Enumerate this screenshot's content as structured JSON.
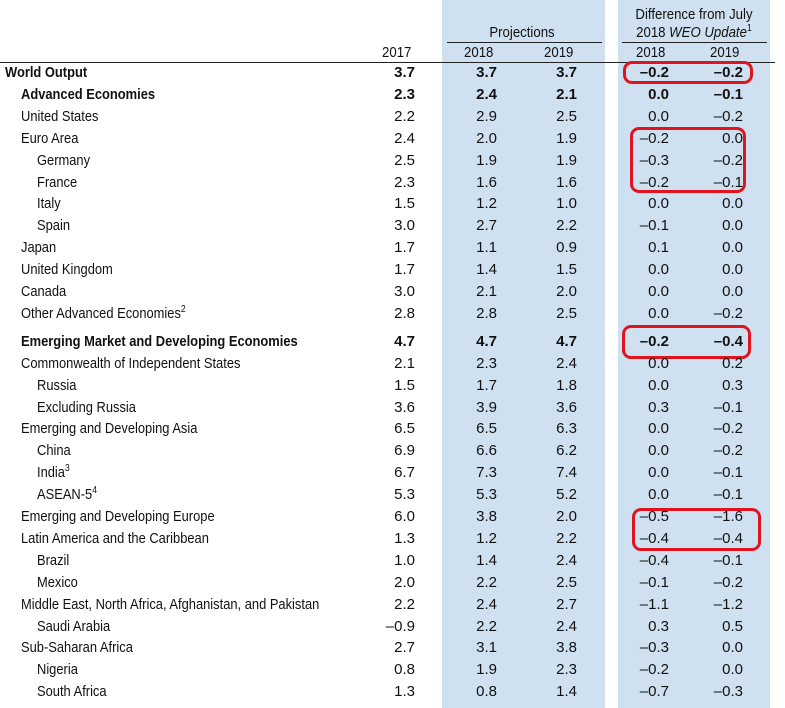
{
  "header": {
    "projections": "Projections",
    "difference": "Difference from July",
    "update_year": "2018",
    "update_title": "WEO Update",
    "update_note": "1",
    "years": [
      "2017",
      "2018",
      "2019",
      "2018",
      "2019"
    ]
  },
  "table": {
    "rows": [
      {
        "label": "World Output",
        "level": 0,
        "bold": true,
        "values": [
          "3.7",
          "3.7",
          "3.7",
          "–0.2",
          "–0.2"
        ]
      },
      {
        "label": "Advanced Economies",
        "level": 1,
        "bold": true,
        "values": [
          "2.3",
          "2.4",
          "2.1",
          "0.0",
          "–0.1"
        ]
      },
      {
        "label": "United States",
        "level": 1,
        "values": [
          "2.2",
          "2.9",
          "2.5",
          "0.0",
          "–0.2"
        ]
      },
      {
        "label": "Euro Area",
        "level": 1,
        "values": [
          "2.4",
          "2.0",
          "1.9",
          "–0.2",
          "0.0"
        ]
      },
      {
        "label": "Germany",
        "level": 2,
        "values": [
          "2.5",
          "1.9",
          "1.9",
          "–0.3",
          "–0.2"
        ]
      },
      {
        "label": "France",
        "level": 2,
        "values": [
          "2.3",
          "1.6",
          "1.6",
          "–0.2",
          "–0.1"
        ]
      },
      {
        "label": "Italy",
        "level": 2,
        "values": [
          "1.5",
          "1.2",
          "1.0",
          "0.0",
          "0.0"
        ]
      },
      {
        "label": "Spain",
        "level": 2,
        "values": [
          "3.0",
          "2.7",
          "2.2",
          "–0.1",
          "0.0"
        ]
      },
      {
        "label": "Japan",
        "level": 1,
        "values": [
          "1.7",
          "1.1",
          "0.9",
          "0.1",
          "0.0"
        ]
      },
      {
        "label": "United Kingdom",
        "level": 1,
        "values": [
          "1.7",
          "1.4",
          "1.5",
          "0.0",
          "0.0"
        ]
      },
      {
        "label": "Canada",
        "level": 1,
        "values": [
          "3.0",
          "2.1",
          "2.0",
          "0.0",
          "0.0"
        ]
      },
      {
        "label": "Other Advanced Economies",
        "note": "2",
        "level": 1,
        "values": [
          "2.8",
          "2.8",
          "2.5",
          "0.0",
          "–0.2"
        ]
      },
      {
        "label": "Emerging Market and Developing Economies",
        "level": 1,
        "bold": true,
        "values": [
          "4.7",
          "4.7",
          "4.7",
          "–0.2",
          "–0.4"
        ]
      },
      {
        "label": "Commonwealth of Independent States",
        "level": 1,
        "values": [
          "2.1",
          "2.3",
          "2.4",
          "0.0",
          "0.2"
        ]
      },
      {
        "label": "Russia",
        "level": 2,
        "values": [
          "1.5",
          "1.7",
          "1.8",
          "0.0",
          "0.3"
        ]
      },
      {
        "label": "Excluding Russia",
        "level": 2,
        "values": [
          "3.6",
          "3.9",
          "3.6",
          "0.3",
          "–0.1"
        ]
      },
      {
        "label": "Emerging and Developing Asia",
        "level": 1,
        "values": [
          "6.5",
          "6.5",
          "6.3",
          "0.0",
          "–0.2"
        ]
      },
      {
        "label": "China",
        "level": 2,
        "values": [
          "6.9",
          "6.6",
          "6.2",
          "0.0",
          "–0.2"
        ]
      },
      {
        "label": "India",
        "note": "3",
        "level": 2,
        "values": [
          "6.7",
          "7.3",
          "7.4",
          "0.0",
          "–0.1"
        ]
      },
      {
        "label": "ASEAN-5",
        "note": "4",
        "level": 2,
        "values": [
          "5.3",
          "5.3",
          "5.2",
          "0.0",
          "–0.1"
        ]
      },
      {
        "label": "Emerging and Developing Europe",
        "level": 1,
        "values": [
          "6.0",
          "3.8",
          "2.0",
          "–0.5",
          "–1.6"
        ]
      },
      {
        "label": "Latin America and the Caribbean",
        "level": 1,
        "values": [
          "1.3",
          "1.2",
          "2.2",
          "–0.4",
          "–0.4"
        ]
      },
      {
        "label": "Brazil",
        "level": 2,
        "values": [
          "1.0",
          "1.4",
          "2.4",
          "–0.4",
          "–0.1"
        ]
      },
      {
        "label": "Mexico",
        "level": 2,
        "values": [
          "2.0",
          "2.2",
          "2.5",
          "–0.1",
          "–0.2"
        ]
      },
      {
        "label": "Middle East, North Africa, Afghanistan, and Pakistan",
        "level": 1,
        "values": [
          "2.2",
          "2.4",
          "2.7",
          "–1.1",
          "–1.2"
        ]
      },
      {
        "label": "Saudi Arabia",
        "level": 2,
        "values": [
          "–0.9",
          "2.2",
          "2.4",
          "0.3",
          "0.5"
        ]
      },
      {
        "label": "Sub-Saharan Africa",
        "level": 1,
        "values": [
          "2.7",
          "3.1",
          "3.8",
          "–0.3",
          "0.0"
        ]
      },
      {
        "label": "Nigeria",
        "level": 2,
        "values": [
          "0.8",
          "1.9",
          "2.3",
          "–0.2",
          "0.0"
        ]
      },
      {
        "label": "South Africa",
        "level": 2,
        "values": [
          "1.3",
          "0.8",
          "1.4",
          "–0.7",
          "–0.3"
        ]
      }
    ]
  }
}
